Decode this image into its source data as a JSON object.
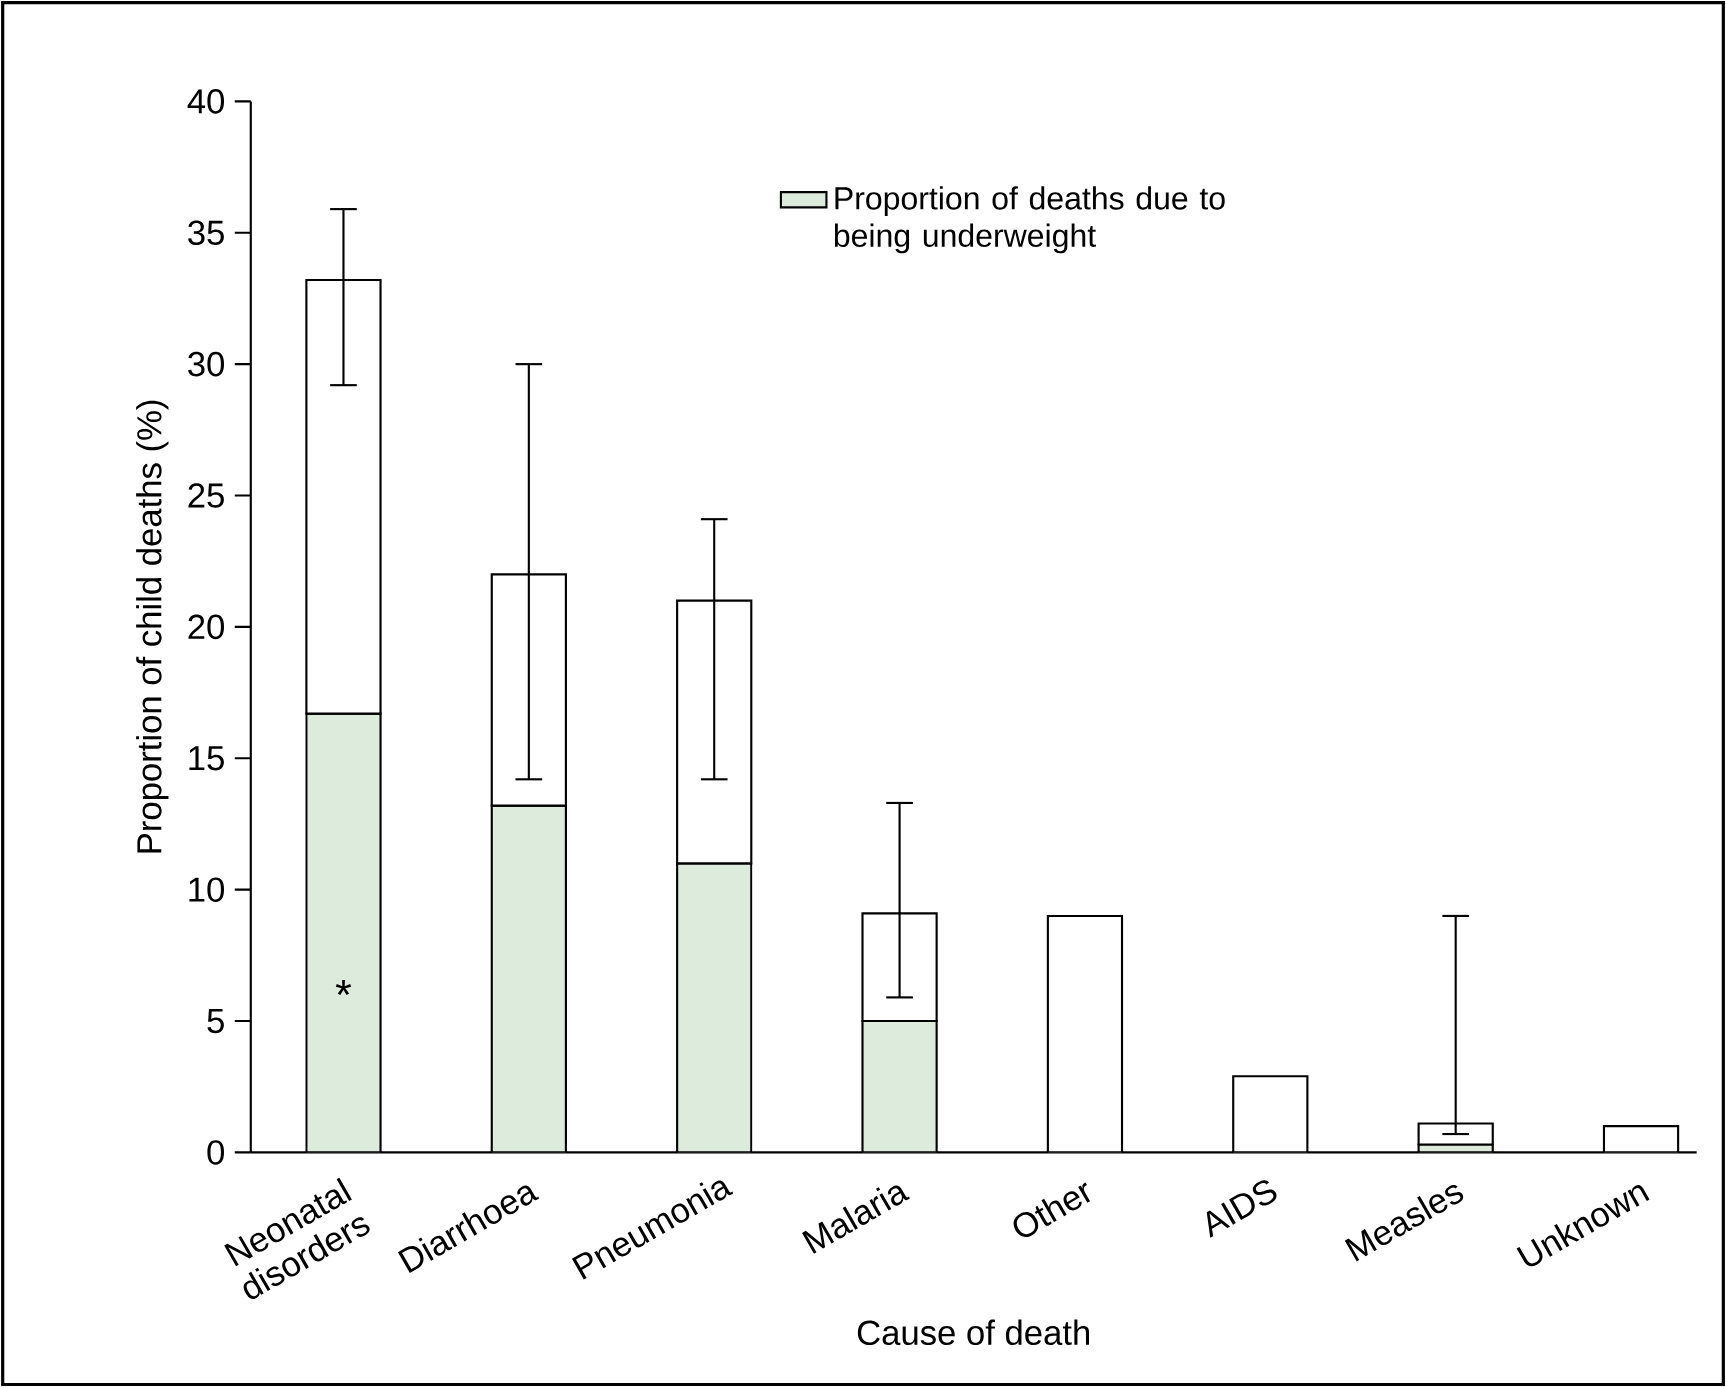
{
  "chart_data": {
    "type": "bar",
    "stacked": true,
    "xlabel": "Cause of death",
    "ylabel": "Proportion of child deaths (%)",
    "categories": [
      "Neonatal disorders",
      "Diarrhoea",
      "Pneumonia",
      "Malaria",
      "Other",
      "AIDS",
      "Measles",
      "Unknown"
    ],
    "series": [
      {
        "name": "Proportion of deaths due to being underweight",
        "color": "#dcebdc",
        "values": [
          16.7,
          13.2,
          11,
          5,
          null,
          null,
          0.3,
          null
        ]
      },
      {
        "color": "#ffffff",
        "values": [
          16.5,
          8.8,
          10,
          4.1,
          9,
          2.9,
          0.8,
          1
        ],
        "errors": [
          [
            29.2,
            35.9
          ],
          [
            14.2,
            30
          ],
          [
            14.2,
            24.1
          ],
          [
            5.9,
            13.3
          ],
          null,
          null,
          [
            0.7,
            9
          ],
          null
        ]
      }
    ],
    "ylim": [
      0,
      40
    ],
    "yticks": [
      0,
      5,
      10,
      15,
      20,
      25,
      30,
      35,
      40
    ],
    "legend": "top right",
    "grid": false,
    "annotations": [
      "*"
    ]
  }
}
